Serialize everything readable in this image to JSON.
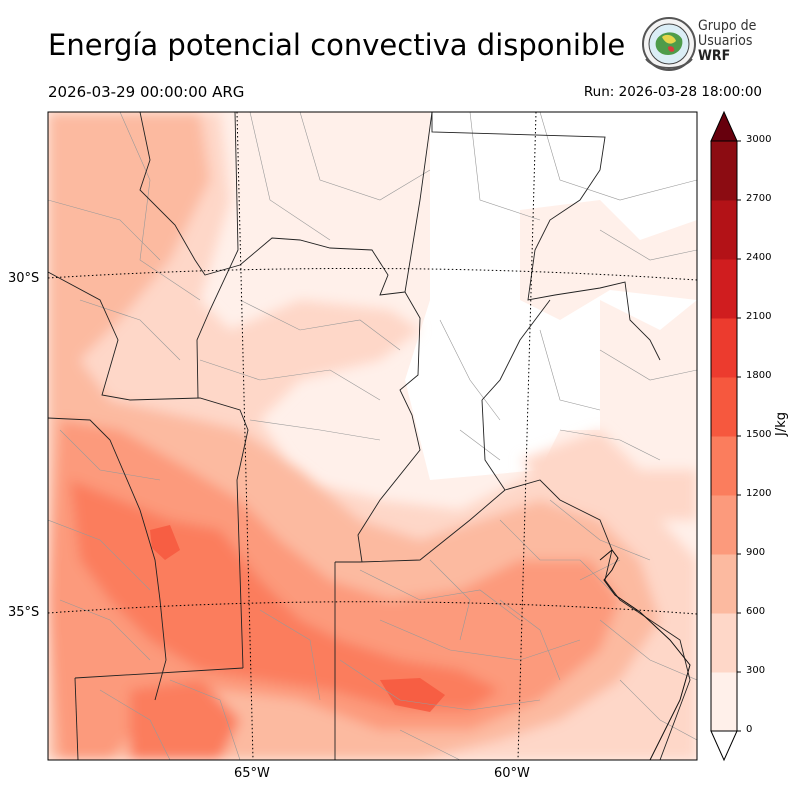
{
  "header": {
    "title": "Energía potencial convectiva disponible",
    "valid_time": "2026-03-29 00:00:00 ARG",
    "run_time": "Run: 2026-03-28 18:00:00"
  },
  "logo": {
    "line1": "Grupo de",
    "line2": "Usuarios",
    "line3": "WRF"
  },
  "map": {
    "variable": "CAPE",
    "lat_labels": [
      "30°S",
      "35°S"
    ],
    "lon_labels": [
      "65°W",
      "60°W"
    ]
  },
  "colorbar": {
    "unit": "J/kg",
    "ticks": [
      "0",
      "300",
      "600",
      "900",
      "1200",
      "1500",
      "1800",
      "2100",
      "2400",
      "2700",
      "3000"
    ],
    "colors": [
      "#fff0ea",
      "#fed7c8",
      "#fcbaa0",
      "#fc9a7c",
      "#fb7d5d",
      "#f6583e",
      "#ec3b2e",
      "#d01d1f",
      "#b31217",
      "#8c0c12",
      "#67000d"
    ],
    "extend": "both"
  }
}
